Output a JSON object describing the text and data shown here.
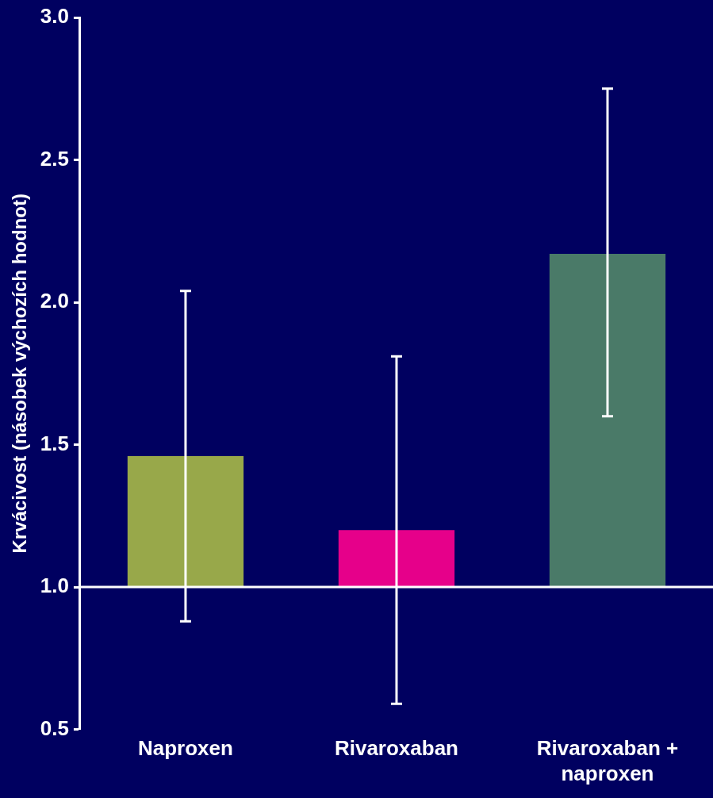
{
  "chart_data": {
    "type": "bar",
    "ylabel": "Krvácivost (násobek výchozích hodnot)",
    "categories": [
      "Naproxen",
      "Rivaroxaban",
      "Rivaroxaban + naproxen"
    ],
    "base": [
      1,
      1,
      1
    ],
    "values": [
      0.46,
      0.2,
      1.17
    ],
    "colors": [
      "#98a84a",
      "#e6008a",
      "#4a7a68"
    ],
    "errors": [
      [
        0.88,
        2.04
      ],
      [
        0.59,
        1.81
      ],
      [
        1.6,
        2.75
      ]
    ],
    "ylim": [
      0.5,
      3.0
    ],
    "yticks": [
      {
        "value": 0.5,
        "label": "0.5"
      },
      {
        "value": 1,
        "label": "1.0"
      },
      {
        "value": 1.5,
        "label": "1.5"
      },
      {
        "value": 2,
        "label": "2.0"
      },
      {
        "value": 2.5,
        "label": "2.5"
      },
      {
        "value": 3,
        "label": "3.0"
      }
    ],
    "ref_lines": [
      {
        "axis": "y",
        "value": 1,
        "color": "#ffffff"
      }
    ],
    "grid": false,
    "legend": false
  }
}
